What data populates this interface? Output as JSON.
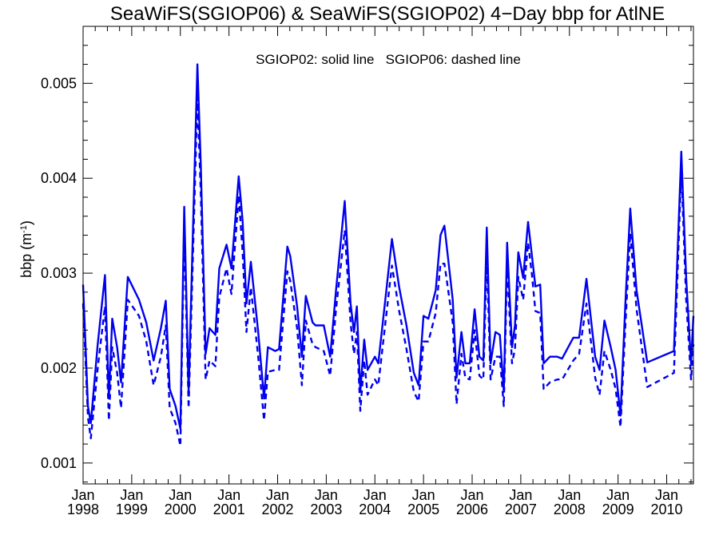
{
  "chart_data": {
    "type": "line",
    "title": "SeaWiFS(SGIOP06) & SeaWiFS(SGIOP02) 4−Day bbp for AtlNE",
    "annotation": "SGIOP02: solid line   SGIOP06: dashed line",
    "ylabel_main": "bbp (m",
    "ylabel_sup": "-1",
    "ylabel_tail": ")",
    "xlabel": "",
    "xlim": [
      1998.0,
      2010.55
    ],
    "ylim": [
      0.00078,
      0.0056
    ],
    "grid": false,
    "legend": "none",
    "line_color": "#0000ee",
    "y_ticks": [
      {
        "value": 0.001,
        "label": "0.001"
      },
      {
        "value": 0.002,
        "label": "0.002"
      },
      {
        "value": 0.003,
        "label": "0.003"
      },
      {
        "value": 0.004,
        "label": "0.004"
      },
      {
        "value": 0.005,
        "label": "0.005"
      }
    ],
    "x_ticks": [
      {
        "value": 1998,
        "month": "Jan",
        "year": "1998"
      },
      {
        "value": 1999,
        "month": "Jan",
        "year": "1999"
      },
      {
        "value": 2000,
        "month": "Jan",
        "year": "2000"
      },
      {
        "value": 2001,
        "month": "Jan",
        "year": "2001"
      },
      {
        "value": 2002,
        "month": "Jan",
        "year": "2002"
      },
      {
        "value": 2003,
        "month": "Jan",
        "year": "2003"
      },
      {
        "value": 2004,
        "month": "Jan",
        "year": "2004"
      },
      {
        "value": 2005,
        "month": "Jan",
        "year": "2005"
      },
      {
        "value": 2006,
        "month": "Jan",
        "year": "2006"
      },
      {
        "value": 2007,
        "month": "Jan",
        "year": "2007"
      },
      {
        "value": 2008,
        "month": "Jan",
        "year": "2008"
      },
      {
        "value": 2009,
        "month": "Jan",
        "year": "2009"
      },
      {
        "value": 2010,
        "month": "Jan",
        "year": "2010"
      }
    ],
    "series": [
      {
        "name": "SGIOP02",
        "style": "solid",
        "points": [
          [
            1998.0,
            0.00288
          ],
          [
            1998.1,
            0.0016
          ],
          [
            1998.16,
            0.00142
          ],
          [
            1998.3,
            0.00225
          ],
          [
            1998.45,
            0.00298
          ],
          [
            1998.53,
            0.00168
          ],
          [
            1998.6,
            0.00252
          ],
          [
            1998.7,
            0.00222
          ],
          [
            1998.78,
            0.00185
          ],
          [
            1998.92,
            0.00296
          ],
          [
            1999.15,
            0.00272
          ],
          [
            1999.3,
            0.00248
          ],
          [
            1999.45,
            0.00208
          ],
          [
            1999.6,
            0.00242
          ],
          [
            1999.7,
            0.00271
          ],
          [
            1999.78,
            0.00178
          ],
          [
            1999.9,
            0.0016
          ],
          [
            2000.0,
            0.00136
          ],
          [
            2000.08,
            0.0037
          ],
          [
            2000.17,
            0.00175
          ],
          [
            2000.35,
            0.0052
          ],
          [
            2000.42,
            0.00415
          ],
          [
            2000.52,
            0.00215
          ],
          [
            2000.6,
            0.00242
          ],
          [
            2000.72,
            0.00235
          ],
          [
            2000.8,
            0.00305
          ],
          [
            2000.95,
            0.0033
          ],
          [
            2001.05,
            0.00305
          ],
          [
            2001.2,
            0.00402
          ],
          [
            2001.28,
            0.00355
          ],
          [
            2001.36,
            0.00268
          ],
          [
            2001.45,
            0.00312
          ],
          [
            2001.6,
            0.00238
          ],
          [
            2001.72,
            0.00168
          ],
          [
            2001.8,
            0.00222
          ],
          [
            2001.95,
            0.00218
          ],
          [
            2002.03,
            0.0022
          ],
          [
            2002.2,
            0.00328
          ],
          [
            2002.26,
            0.00318
          ],
          [
            2002.4,
            0.00265
          ],
          [
            2002.5,
            0.00212
          ],
          [
            2002.58,
            0.00276
          ],
          [
            2002.72,
            0.00248
          ],
          [
            2002.78,
            0.00245
          ],
          [
            2002.95,
            0.00245
          ],
          [
            2003.08,
            0.00212
          ],
          [
            2003.2,
            0.00282
          ],
          [
            2003.38,
            0.00376
          ],
          [
            2003.5,
            0.00268
          ],
          [
            2003.57,
            0.00238
          ],
          [
            2003.63,
            0.00265
          ],
          [
            2003.7,
            0.00175
          ],
          [
            2003.78,
            0.0023
          ],
          [
            2003.85,
            0.00198
          ],
          [
            2004.0,
            0.00212
          ],
          [
            2004.07,
            0.00205
          ],
          [
            2004.22,
            0.00275
          ],
          [
            2004.35,
            0.00336
          ],
          [
            2004.5,
            0.00285
          ],
          [
            2004.65,
            0.00245
          ],
          [
            2004.8,
            0.00195
          ],
          [
            2004.9,
            0.00182
          ],
          [
            2005.0,
            0.00255
          ],
          [
            2005.1,
            0.00252
          ],
          [
            2005.25,
            0.00282
          ],
          [
            2005.35,
            0.0034
          ],
          [
            2005.43,
            0.0035
          ],
          [
            2005.6,
            0.00272
          ],
          [
            2005.68,
            0.0019
          ],
          [
            2005.78,
            0.00238
          ],
          [
            2005.86,
            0.00205
          ],
          [
            2005.95,
            0.00205
          ],
          [
            2006.05,
            0.00262
          ],
          [
            2006.15,
            0.00212
          ],
          [
            2006.23,
            0.00208
          ],
          [
            2006.3,
            0.00348
          ],
          [
            2006.38,
            0.00205
          ],
          [
            2006.48,
            0.00238
          ],
          [
            2006.57,
            0.00235
          ],
          [
            2006.65,
            0.00175
          ],
          [
            2006.72,
            0.00332
          ],
          [
            2006.82,
            0.00222
          ],
          [
            2006.88,
            0.00245
          ],
          [
            2006.95,
            0.00322
          ],
          [
            2007.05,
            0.00295
          ],
          [
            2007.15,
            0.00354
          ],
          [
            2007.23,
            0.00318
          ],
          [
            2007.3,
            0.00286
          ],
          [
            2007.4,
            0.00288
          ],
          [
            2007.47,
            0.00205
          ],
          [
            2007.6,
            0.00212
          ],
          [
            2007.75,
            0.00212
          ],
          [
            2007.85,
            0.0021
          ],
          [
            2008.08,
            0.00232
          ],
          [
            2008.2,
            0.00232
          ],
          [
            2008.35,
            0.00294
          ],
          [
            2008.53,
            0.00212
          ],
          [
            2008.62,
            0.00198
          ],
          [
            2008.72,
            0.0025
          ],
          [
            2008.85,
            0.00222
          ],
          [
            2008.95,
            0.00198
          ],
          [
            2009.05,
            0.0015
          ],
          [
            2009.15,
            0.00268
          ],
          [
            2009.25,
            0.00368
          ],
          [
            2009.38,
            0.00282
          ],
          [
            2009.6,
            0.00206
          ],
          [
            2010.15,
            0.00218
          ],
          [
            2010.3,
            0.00428
          ],
          [
            2010.4,
            0.00295
          ],
          [
            2010.5,
            0.00205
          ],
          [
            2010.55,
            0.00255
          ]
        ]
      },
      {
        "name": "SGIOP06",
        "style": "dashed",
        "points": [
          [
            1998.0,
            0.00268
          ],
          [
            1998.1,
            0.00148
          ],
          [
            1998.16,
            0.00126
          ],
          [
            1998.3,
            0.002
          ],
          [
            1998.45,
            0.00265
          ],
          [
            1998.53,
            0.00145
          ],
          [
            1998.6,
            0.00222
          ],
          [
            1998.7,
            0.00195
          ],
          [
            1998.78,
            0.00158
          ],
          [
            1998.92,
            0.00272
          ],
          [
            1999.15,
            0.00255
          ],
          [
            1999.3,
            0.00228
          ],
          [
            1999.45,
            0.00182
          ],
          [
            1999.6,
            0.00212
          ],
          [
            1999.7,
            0.00245
          ],
          [
            1999.78,
            0.00158
          ],
          [
            1999.9,
            0.00142
          ],
          [
            2000.0,
            0.00118
          ],
          [
            2000.08,
            0.0035
          ],
          [
            2000.17,
            0.00158
          ],
          [
            2000.35,
            0.00485
          ],
          [
            2000.42,
            0.00385
          ],
          [
            2000.52,
            0.00188
          ],
          [
            2000.6,
            0.00208
          ],
          [
            2000.72,
            0.00202
          ],
          [
            2000.8,
            0.00275
          ],
          [
            2000.95,
            0.00305
          ],
          [
            2001.05,
            0.00278
          ],
          [
            2001.2,
            0.00382
          ],
          [
            2001.28,
            0.00322
          ],
          [
            2001.36,
            0.00238
          ],
          [
            2001.45,
            0.00285
          ],
          [
            2001.6,
            0.00212
          ],
          [
            2001.72,
            0.00145
          ],
          [
            2001.8,
            0.00196
          ],
          [
            2001.95,
            0.00198
          ],
          [
            2002.03,
            0.00198
          ],
          [
            2002.2,
            0.00302
          ],
          [
            2002.26,
            0.00292
          ],
          [
            2002.4,
            0.00242
          ],
          [
            2002.5,
            0.00182
          ],
          [
            2002.58,
            0.0025
          ],
          [
            2002.72,
            0.00225
          ],
          [
            2002.78,
            0.00222
          ],
          [
            2002.95,
            0.00218
          ],
          [
            2003.08,
            0.00192
          ],
          [
            2003.2,
            0.00262
          ],
          [
            2003.38,
            0.00345
          ],
          [
            2003.5,
            0.00248
          ],
          [
            2003.57,
            0.00215
          ],
          [
            2003.63,
            0.00238
          ],
          [
            2003.7,
            0.00155
          ],
          [
            2003.78,
            0.00208
          ],
          [
            2003.85,
            0.00172
          ],
          [
            2004.0,
            0.00188
          ],
          [
            2004.07,
            0.00182
          ],
          [
            2004.22,
            0.0025
          ],
          [
            2004.35,
            0.00308
          ],
          [
            2004.5,
            0.0026
          ],
          [
            2004.65,
            0.0022
          ],
          [
            2004.8,
            0.00175
          ],
          [
            2004.9,
            0.00165
          ],
          [
            2005.0,
            0.00228
          ],
          [
            2005.1,
            0.00228
          ],
          [
            2005.25,
            0.00258
          ],
          [
            2005.35,
            0.0031
          ],
          [
            2005.43,
            0.0031
          ],
          [
            2005.6,
            0.00248
          ],
          [
            2005.68,
            0.00162
          ],
          [
            2005.78,
            0.00215
          ],
          [
            2005.86,
            0.0019
          ],
          [
            2005.95,
            0.00188
          ],
          [
            2006.05,
            0.0024
          ],
          [
            2006.15,
            0.00192
          ],
          [
            2006.23,
            0.00188
          ],
          [
            2006.3,
            0.00318
          ],
          [
            2006.38,
            0.00188
          ],
          [
            2006.48,
            0.00212
          ],
          [
            2006.57,
            0.00212
          ],
          [
            2006.65,
            0.0016
          ],
          [
            2006.72,
            0.00308
          ],
          [
            2006.82,
            0.00205
          ],
          [
            2006.88,
            0.0022
          ],
          [
            2006.95,
            0.00296
          ],
          [
            2007.05,
            0.00272
          ],
          [
            2007.15,
            0.00332
          ],
          [
            2007.23,
            0.00298
          ],
          [
            2007.3,
            0.0026
          ],
          [
            2007.4,
            0.00258
          ],
          [
            2007.47,
            0.00178
          ],
          [
            2007.6,
            0.00185
          ],
          [
            2007.75,
            0.00188
          ],
          [
            2007.85,
            0.00188
          ],
          [
            2008.08,
            0.00208
          ],
          [
            2008.2,
            0.00215
          ],
          [
            2008.35,
            0.00268
          ],
          [
            2008.53,
            0.0019
          ],
          [
            2008.62,
            0.00172
          ],
          [
            2008.72,
            0.00218
          ],
          [
            2008.85,
            0.00198
          ],
          [
            2008.95,
            0.00178
          ],
          [
            2009.05,
            0.00138
          ],
          [
            2009.15,
            0.00245
          ],
          [
            2009.25,
            0.00342
          ],
          [
            2009.38,
            0.00262
          ],
          [
            2009.6,
            0.0018
          ],
          [
            2010.15,
            0.00195
          ],
          [
            2010.3,
            0.0041
          ],
          [
            2010.4,
            0.00272
          ],
          [
            2010.5,
            0.00188
          ],
          [
            2010.55,
            0.00225
          ]
        ]
      }
    ]
  }
}
